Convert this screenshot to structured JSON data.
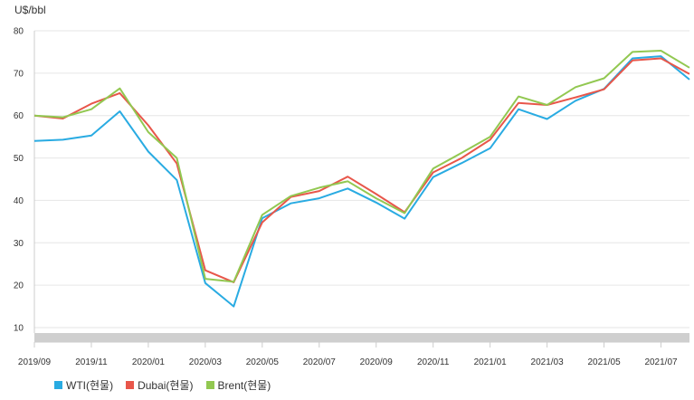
{
  "chart_data": {
    "type": "line",
    "ylabel": "U$/bbl",
    "ylim": [
      10,
      80
    ],
    "yticks": [
      10,
      20,
      30,
      40,
      50,
      60,
      70,
      80
    ],
    "categories": [
      "2019/09",
      "2019/10",
      "2019/11",
      "2019/12",
      "2020/01",
      "2020/02",
      "2020/03",
      "2020/04",
      "2020/05",
      "2020/06",
      "2020/07",
      "2020/08",
      "2020/09",
      "2020/10",
      "2020/11",
      "2020/12",
      "2021/01",
      "2021/02",
      "2021/03",
      "2021/04",
      "2021/05",
      "2021/06",
      "2021/07",
      "2021/08"
    ],
    "xticklabels": [
      "2019/09",
      "2019/11",
      "2020/01",
      "2020/03",
      "2020/05",
      "2020/07",
      "2020/09",
      "2020/11",
      "2021/01",
      "2021/03",
      "2021/05",
      "2021/07"
    ],
    "grid": true,
    "legend_position": "bottom-left",
    "series": [
      {
        "name": "WTI(현물)",
        "color": "#29abe2",
        "values": [
          54.0,
          54.3,
          55.3,
          61.0,
          51.5,
          44.8,
          20.5,
          15.0,
          35.8,
          39.3,
          40.5,
          42.8,
          39.5,
          35.7,
          45.5,
          48.8,
          52.3,
          61.5,
          59.2,
          63.5,
          66.3,
          73.5,
          74.0,
          68.5
        ]
      },
      {
        "name": "Dubai(현물)",
        "color": "#e8564a",
        "values": [
          60.0,
          59.3,
          62.8,
          65.3,
          57.7,
          48.7,
          23.5,
          20.7,
          34.8,
          40.8,
          42.2,
          45.6,
          41.5,
          37.2,
          46.6,
          50.0,
          54.3,
          63.0,
          62.5,
          64.3,
          66.2,
          73.0,
          73.5,
          69.8
        ]
      },
      {
        "name": "Brent(현물)",
        "color": "#92c851",
        "values": [
          60.0,
          59.6,
          61.5,
          66.4,
          56.1,
          50.0,
          21.5,
          20.8,
          36.6,
          41.0,
          43.0,
          44.5,
          40.5,
          37.0,
          47.5,
          51.2,
          55.0,
          64.5,
          62.5,
          66.7,
          68.8,
          75.0,
          75.3,
          71.3
        ]
      }
    ]
  }
}
